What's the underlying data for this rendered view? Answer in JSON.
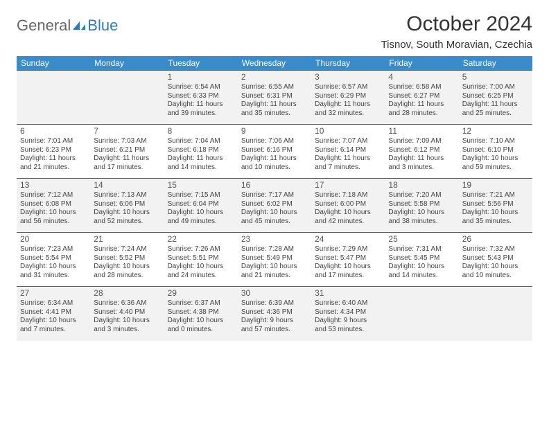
{
  "brand": {
    "word1": "General",
    "word2": "Blue"
  },
  "title": "October 2024",
  "location": "Tisnov, South Moravian, Czechia",
  "headers": [
    "Sunday",
    "Monday",
    "Tuesday",
    "Wednesday",
    "Thursday",
    "Friday",
    "Saturday"
  ],
  "colors": {
    "header_bg": "#3a8bc9",
    "header_fg": "#ffffff",
    "rule": "#2b6a9e",
    "alt_row": "#f2f2f2",
    "logo_gray": "#666666",
    "logo_blue": "#2b7bbf"
  },
  "weeks": [
    [
      null,
      null,
      {
        "n": "1",
        "sr": "Sunrise: 6:54 AM",
        "ss": "Sunset: 6:33 PM",
        "d1": "Daylight: 11 hours",
        "d2": "and 39 minutes."
      },
      {
        "n": "2",
        "sr": "Sunrise: 6:55 AM",
        "ss": "Sunset: 6:31 PM",
        "d1": "Daylight: 11 hours",
        "d2": "and 35 minutes."
      },
      {
        "n": "3",
        "sr": "Sunrise: 6:57 AM",
        "ss": "Sunset: 6:29 PM",
        "d1": "Daylight: 11 hours",
        "d2": "and 32 minutes."
      },
      {
        "n": "4",
        "sr": "Sunrise: 6:58 AM",
        "ss": "Sunset: 6:27 PM",
        "d1": "Daylight: 11 hours",
        "d2": "and 28 minutes."
      },
      {
        "n": "5",
        "sr": "Sunrise: 7:00 AM",
        "ss": "Sunset: 6:25 PM",
        "d1": "Daylight: 11 hours",
        "d2": "and 25 minutes."
      }
    ],
    [
      {
        "n": "6",
        "sr": "Sunrise: 7:01 AM",
        "ss": "Sunset: 6:23 PM",
        "d1": "Daylight: 11 hours",
        "d2": "and 21 minutes."
      },
      {
        "n": "7",
        "sr": "Sunrise: 7:03 AM",
        "ss": "Sunset: 6:21 PM",
        "d1": "Daylight: 11 hours",
        "d2": "and 17 minutes."
      },
      {
        "n": "8",
        "sr": "Sunrise: 7:04 AM",
        "ss": "Sunset: 6:18 PM",
        "d1": "Daylight: 11 hours",
        "d2": "and 14 minutes."
      },
      {
        "n": "9",
        "sr": "Sunrise: 7:06 AM",
        "ss": "Sunset: 6:16 PM",
        "d1": "Daylight: 11 hours",
        "d2": "and 10 minutes."
      },
      {
        "n": "10",
        "sr": "Sunrise: 7:07 AM",
        "ss": "Sunset: 6:14 PM",
        "d1": "Daylight: 11 hours",
        "d2": "and 7 minutes."
      },
      {
        "n": "11",
        "sr": "Sunrise: 7:09 AM",
        "ss": "Sunset: 6:12 PM",
        "d1": "Daylight: 11 hours",
        "d2": "and 3 minutes."
      },
      {
        "n": "12",
        "sr": "Sunrise: 7:10 AM",
        "ss": "Sunset: 6:10 PM",
        "d1": "Daylight: 10 hours",
        "d2": "and 59 minutes."
      }
    ],
    [
      {
        "n": "13",
        "sr": "Sunrise: 7:12 AM",
        "ss": "Sunset: 6:08 PM",
        "d1": "Daylight: 10 hours",
        "d2": "and 56 minutes."
      },
      {
        "n": "14",
        "sr": "Sunrise: 7:13 AM",
        "ss": "Sunset: 6:06 PM",
        "d1": "Daylight: 10 hours",
        "d2": "and 52 minutes."
      },
      {
        "n": "15",
        "sr": "Sunrise: 7:15 AM",
        "ss": "Sunset: 6:04 PM",
        "d1": "Daylight: 10 hours",
        "d2": "and 49 minutes."
      },
      {
        "n": "16",
        "sr": "Sunrise: 7:17 AM",
        "ss": "Sunset: 6:02 PM",
        "d1": "Daylight: 10 hours",
        "d2": "and 45 minutes."
      },
      {
        "n": "17",
        "sr": "Sunrise: 7:18 AM",
        "ss": "Sunset: 6:00 PM",
        "d1": "Daylight: 10 hours",
        "d2": "and 42 minutes."
      },
      {
        "n": "18",
        "sr": "Sunrise: 7:20 AM",
        "ss": "Sunset: 5:58 PM",
        "d1": "Daylight: 10 hours",
        "d2": "and 38 minutes."
      },
      {
        "n": "19",
        "sr": "Sunrise: 7:21 AM",
        "ss": "Sunset: 5:56 PM",
        "d1": "Daylight: 10 hours",
        "d2": "and 35 minutes."
      }
    ],
    [
      {
        "n": "20",
        "sr": "Sunrise: 7:23 AM",
        "ss": "Sunset: 5:54 PM",
        "d1": "Daylight: 10 hours",
        "d2": "and 31 minutes."
      },
      {
        "n": "21",
        "sr": "Sunrise: 7:24 AM",
        "ss": "Sunset: 5:52 PM",
        "d1": "Daylight: 10 hours",
        "d2": "and 28 minutes."
      },
      {
        "n": "22",
        "sr": "Sunrise: 7:26 AM",
        "ss": "Sunset: 5:51 PM",
        "d1": "Daylight: 10 hours",
        "d2": "and 24 minutes."
      },
      {
        "n": "23",
        "sr": "Sunrise: 7:28 AM",
        "ss": "Sunset: 5:49 PM",
        "d1": "Daylight: 10 hours",
        "d2": "and 21 minutes."
      },
      {
        "n": "24",
        "sr": "Sunrise: 7:29 AM",
        "ss": "Sunset: 5:47 PM",
        "d1": "Daylight: 10 hours",
        "d2": "and 17 minutes."
      },
      {
        "n": "25",
        "sr": "Sunrise: 7:31 AM",
        "ss": "Sunset: 5:45 PM",
        "d1": "Daylight: 10 hours",
        "d2": "and 14 minutes."
      },
      {
        "n": "26",
        "sr": "Sunrise: 7:32 AM",
        "ss": "Sunset: 5:43 PM",
        "d1": "Daylight: 10 hours",
        "d2": "and 10 minutes."
      }
    ],
    [
      {
        "n": "27",
        "sr": "Sunrise: 6:34 AM",
        "ss": "Sunset: 4:41 PM",
        "d1": "Daylight: 10 hours",
        "d2": "and 7 minutes."
      },
      {
        "n": "28",
        "sr": "Sunrise: 6:36 AM",
        "ss": "Sunset: 4:40 PM",
        "d1": "Daylight: 10 hours",
        "d2": "and 3 minutes."
      },
      {
        "n": "29",
        "sr": "Sunrise: 6:37 AM",
        "ss": "Sunset: 4:38 PM",
        "d1": "Daylight: 10 hours",
        "d2": "and 0 minutes."
      },
      {
        "n": "30",
        "sr": "Sunrise: 6:39 AM",
        "ss": "Sunset: 4:36 PM",
        "d1": "Daylight: 9 hours",
        "d2": "and 57 minutes."
      },
      {
        "n": "31",
        "sr": "Sunrise: 6:40 AM",
        "ss": "Sunset: 4:34 PM",
        "d1": "Daylight: 9 hours",
        "d2": "and 53 minutes."
      },
      null,
      null
    ]
  ]
}
